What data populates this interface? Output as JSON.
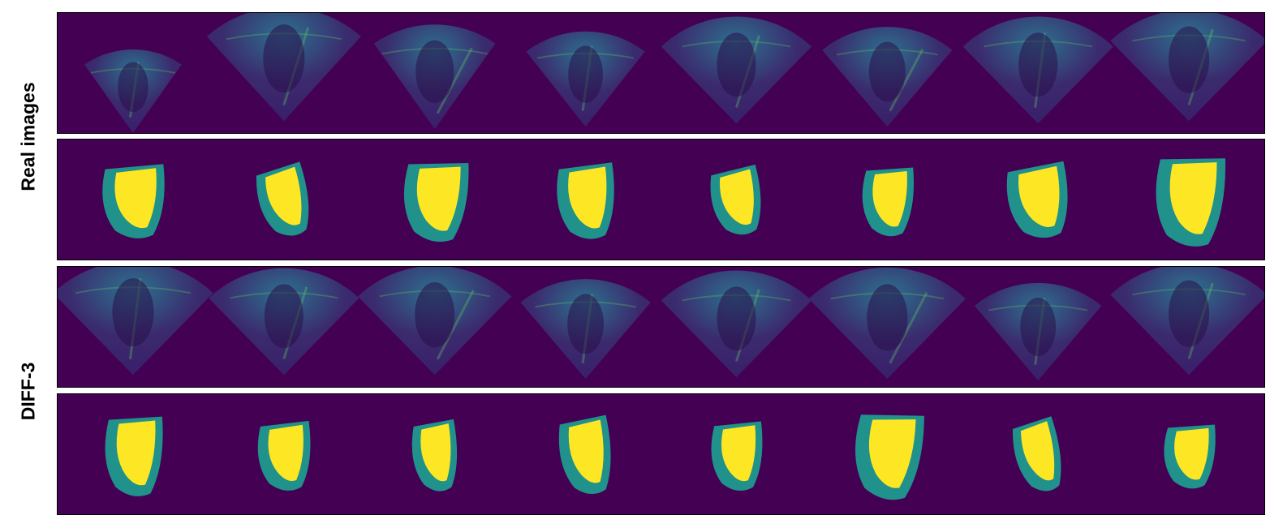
{
  "labels": {
    "group1": "Real images",
    "group2": "DIFF-3"
  },
  "colors": {
    "background": "#440154",
    "myocardium": "#21918c",
    "cavity": "#fde725",
    "ultrasound_dark": "#3b2a6e",
    "ultrasound_mid": "#2c728e",
    "ultrasound_bright": "#5ec962"
  },
  "panels": [
    {
      "name": "real-ultrasound-row",
      "kind": "ultrasound",
      "count": 8
    },
    {
      "name": "real-mask-row",
      "kind": "mask",
      "count": 8
    },
    {
      "name": "diff3-ultrasound-row",
      "kind": "ultrasound",
      "count": 8
    },
    {
      "name": "diff3-mask-row",
      "kind": "mask",
      "count": 8
    }
  ]
}
